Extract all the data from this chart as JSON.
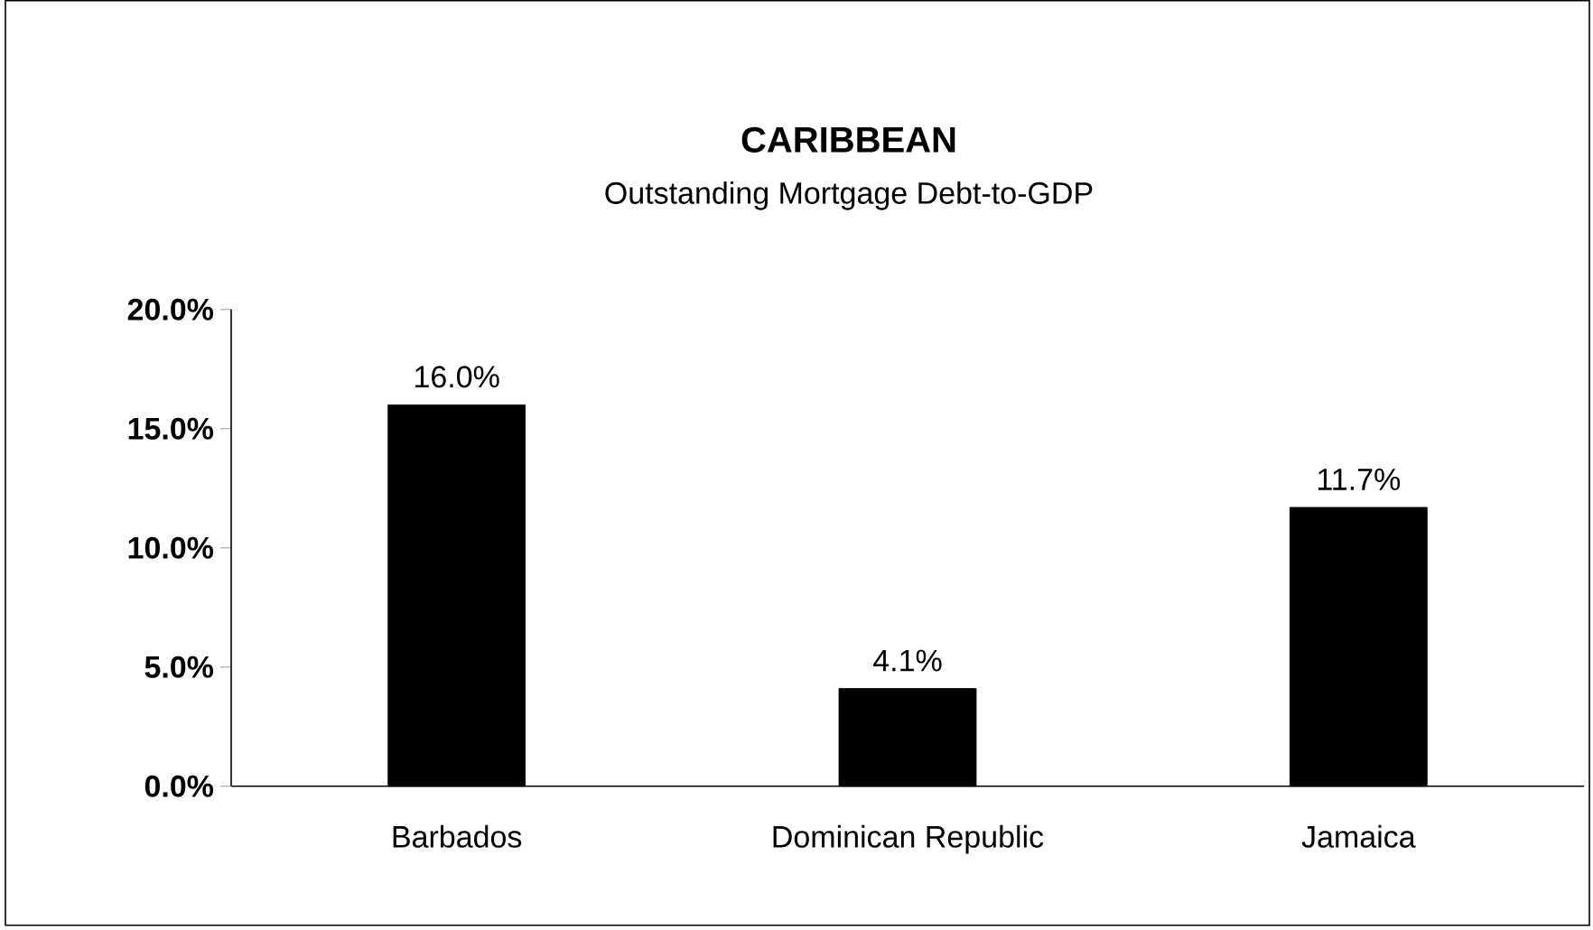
{
  "chart_data": {
    "type": "bar",
    "title": "CARIBBEAN",
    "subtitle": "Outstanding Mortgage Debt-to-GDP",
    "categories": [
      "Barbados",
      "Dominican Republic",
      "Jamaica"
    ],
    "values": [
      16.0,
      4.1,
      11.7
    ],
    "value_labels": [
      "16.0%",
      "4.1%",
      "11.7%"
    ],
    "color": "#000000",
    "ylim": [
      0,
      20
    ],
    "yticks": [
      {
        "value": 0,
        "label": "0.0%"
      },
      {
        "value": 5,
        "label": "5.0%"
      },
      {
        "value": 10,
        "label": "10.0%"
      },
      {
        "value": 15,
        "label": "15.0%"
      },
      {
        "value": 20,
        "label": "20.0%"
      }
    ]
  }
}
